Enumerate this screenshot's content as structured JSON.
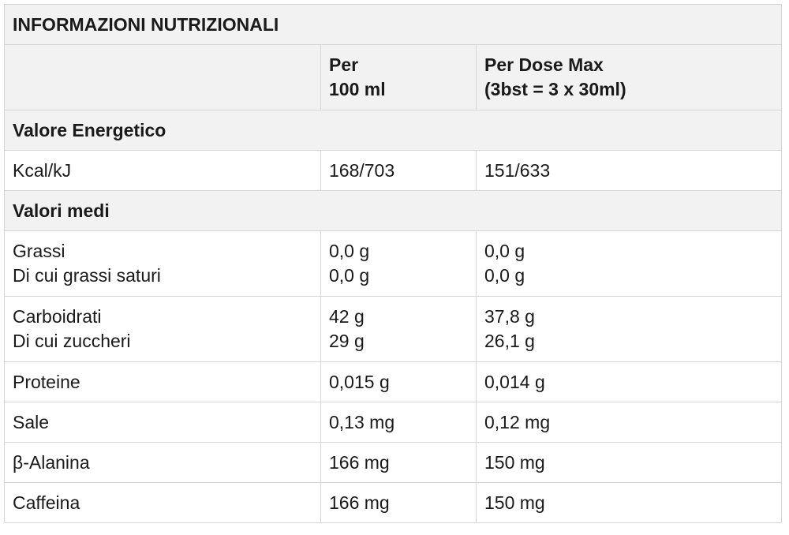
{
  "title": "INFORMAZIONI NUTRIZIONALI",
  "columns": {
    "per100": [
      "Per",
      "100 ml"
    ],
    "perDose": [
      "Per Dose Max",
      "(3bst = 3 x 30ml)"
    ]
  },
  "sections": {
    "energy": "Valore Energetico",
    "avg": "Valori medi"
  },
  "rows": [
    {
      "labels": [
        "Kcal/kJ"
      ],
      "per100": [
        "168/703"
      ],
      "perDose": [
        "151/633"
      ]
    },
    {
      "labels": [
        "Grassi",
        "Di cui grassi saturi"
      ],
      "per100": [
        "0,0 g",
        "0,0 g"
      ],
      "perDose": [
        "0,0 g",
        "0,0 g"
      ]
    },
    {
      "labels": [
        "Carboidrati",
        "Di cui zuccheri"
      ],
      "per100": [
        "42 g",
        "29 g"
      ],
      "perDose": [
        "37,8 g",
        "26,1 g"
      ]
    },
    {
      "labels": [
        "Proteine"
      ],
      "per100": [
        "0,015 g"
      ],
      "perDose": [
        "0,014 g"
      ]
    },
    {
      "labels": [
        "Sale"
      ],
      "per100": [
        "0,13 mg"
      ],
      "perDose": [
        "0,12 mg"
      ]
    },
    {
      "labels": [
        "β-Alanina"
      ],
      "per100": [
        "166 mg"
      ],
      "perDose": [
        "150 mg"
      ]
    },
    {
      "labels": [
        "Caffeina"
      ],
      "per100": [
        "166 mg"
      ],
      "perDose": [
        "150 mg"
      ]
    }
  ]
}
